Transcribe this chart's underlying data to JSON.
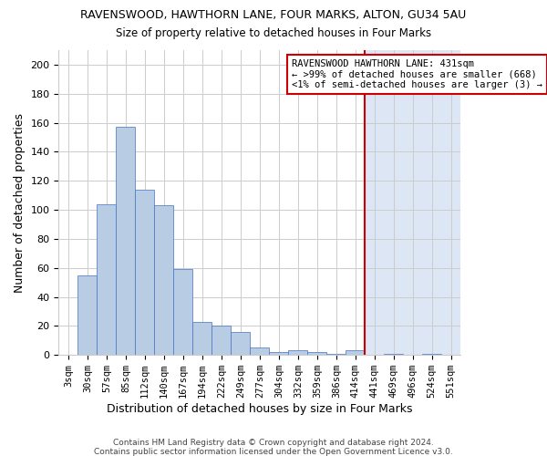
{
  "title": "RAVENSWOOD, HAWTHORN LANE, FOUR MARKS, ALTON, GU34 5AU",
  "subtitle": "Size of property relative to detached houses in Four Marks",
  "xlabel": "Distribution of detached houses by size in Four Marks",
  "ylabel": "Number of detached properties",
  "footer_line1": "Contains HM Land Registry data © Crown copyright and database right 2024.",
  "footer_line2": "Contains public sector information licensed under the Open Government Licence v3.0.",
  "bar_labels": [
    "3sqm",
    "30sqm",
    "57sqm",
    "85sqm",
    "112sqm",
    "140sqm",
    "167sqm",
    "194sqm",
    "222sqm",
    "249sqm",
    "277sqm",
    "304sqm",
    "332sqm",
    "359sqm",
    "386sqm",
    "414sqm",
    "441sqm",
    "469sqm",
    "496sqm",
    "524sqm",
    "551sqm"
  ],
  "bar_heights": [
    0,
    55,
    104,
    157,
    114,
    103,
    59,
    23,
    20,
    16,
    5,
    2,
    3,
    2,
    1,
    3,
    0,
    1,
    0,
    1,
    0
  ],
  "highlight_index": 16,
  "annotation_lines": [
    "RAVENSWOOD HAWTHORN LANE: 431sqm",
    "← >99% of detached houses are smaller (668)",
    "<1% of semi-detached houses are larger (3) →"
  ],
  "bar_color": "#b8cce4",
  "bar_edge_color": "#4472c4",
  "grid_color": "#cccccc",
  "annotation_box_color": "#ffffff",
  "annotation_border_color": "#cc0000",
  "vline_color": "#cc0000",
  "background_color": "#ffffff",
  "highlight_bg_color": "#dce6f5",
  "ylim": [
    0,
    210
  ],
  "yticks": [
    0,
    20,
    40,
    60,
    80,
    100,
    120,
    140,
    160,
    180,
    200
  ]
}
